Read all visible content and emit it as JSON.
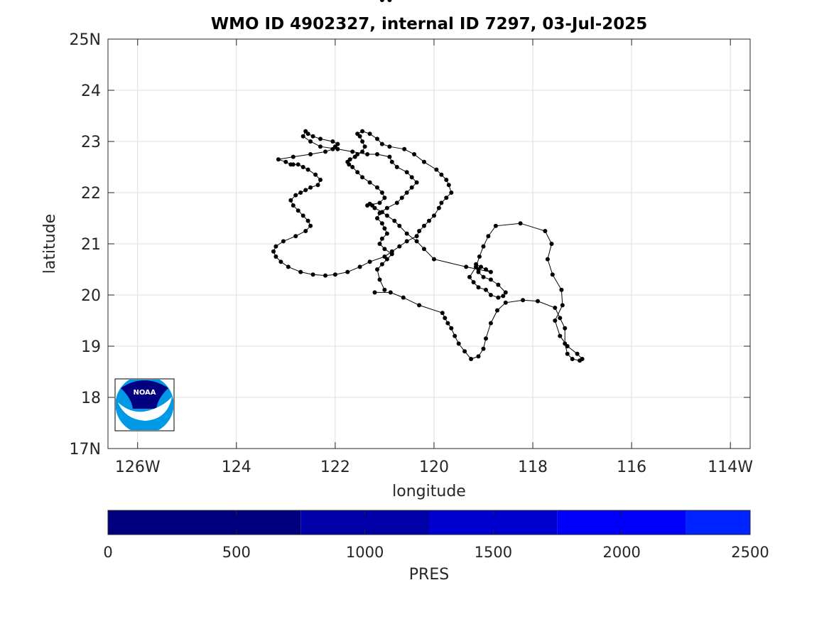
{
  "chart_data": {
    "type": "line",
    "title": "WMO ID 4902327, internal ID 7297, 03-Jul-2025",
    "xlabel": "longitude",
    "ylabel": "latitude",
    "xlim": [
      -126.6,
      -113.6
    ],
    "ylim": [
      17,
      25
    ],
    "xticks": [
      {
        "v": -126,
        "label": "126W"
      },
      {
        "v": -124,
        "label": "124"
      },
      {
        "v": -122,
        "label": "122"
      },
      {
        "v": -120,
        "label": "120"
      },
      {
        "v": -118,
        "label": "118"
      },
      {
        "v": -116,
        "label": "116"
      },
      {
        "v": -114,
        "label": "114W"
      }
    ],
    "yticks": [
      {
        "v": 17,
        "label": "17N"
      },
      {
        "v": 18,
        "label": "18"
      },
      {
        "v": 19,
        "label": "19"
      },
      {
        "v": 20,
        "label": "20"
      },
      {
        "v": 21,
        "label": "21"
      },
      {
        "v": 22,
        "label": "22"
      },
      {
        "v": 23,
        "label": "23"
      },
      {
        "v": 24,
        "label": "24"
      },
      {
        "v": 25,
        "label": "25N"
      }
    ],
    "grid": true,
    "series": [
      {
        "marker_color": "#000000",
        "line_color": "#000000",
        "lon": [
          -121.2,
          -120.88,
          -120.62,
          -120.3,
          -119.83,
          -119.78,
          -119.72,
          -119.65,
          -119.58,
          -119.5,
          -119.38,
          -119.25,
          -119.1,
          -119.0,
          -118.95,
          -118.85,
          -118.72,
          -118.55,
          -118.2,
          -117.9,
          -117.55,
          -117.45,
          -117.35,
          -117.35,
          -117.3,
          -117.2,
          -117.05,
          -117.0,
          -117.1,
          -117.3,
          -117.45,
          -117.55,
          -117.4,
          -117.42,
          -117.6,
          -117.7,
          -117.62,
          -117.75,
          -118.25,
          -118.75,
          -118.9,
          -119.0,
          -119.08,
          -119.15,
          -119.28,
          -119.2,
          -119.1,
          -118.95,
          -118.85,
          -118.7,
          -118.6,
          -118.55,
          -118.7,
          -118.85,
          -119.0,
          -119.1,
          -119.15,
          -119.15,
          -119.05,
          -118.95,
          -118.85,
          -119.1,
          -119.35,
          -120.0,
          -120.2,
          -120.35,
          -120.55,
          -120.7,
          -120.8,
          -120.95,
          -121.05,
          -121.2,
          -121.25,
          -121.3,
          -121.35,
          -121.1,
          -121.0,
          -121.05,
          -121.15,
          -121.3,
          -121.45,
          -121.55,
          -121.65,
          -121.72,
          -121.75,
          -121.7,
          -121.6,
          -121.55,
          -121.45,
          -121.4,
          -121.45,
          -121.5,
          -121.55,
          -121.45,
          -121.3,
          -121.15,
          -121.05,
          -120.9,
          -120.6,
          -120.4,
          -120.2,
          -119.95,
          -119.85,
          -119.75,
          -119.7,
          -119.65,
          -119.75,
          -119.85,
          -119.9,
          -120.0,
          -120.1,
          -120.2,
          -120.3,
          -120.35,
          -120.55,
          -120.7,
          -120.85,
          -121.0,
          -121.3,
          -121.5,
          -121.75,
          -122.0,
          -122.2,
          -122.45,
          -122.7,
          -122.95,
          -123.1,
          -123.2,
          -123.25,
          -123.2,
          -123.05,
          -122.8,
          -122.6,
          -122.5,
          -122.55,
          -122.65,
          -122.75,
          -122.85,
          -122.9,
          -122.8,
          -122.7,
          -122.6,
          -122.5,
          -122.35,
          -122.3,
          -122.4,
          -122.55,
          -122.65,
          -122.75,
          -122.85,
          -122.9,
          -123.0,
          -123.15,
          -122.85,
          -122.5,
          -122.2,
          -122.05,
          -122.0,
          -121.95,
          -122.05,
          -122.3,
          -122.45,
          -122.55,
          -122.6,
          -122.65,
          -122.5,
          -122.3,
          -121.95,
          -121.65,
          -121.35,
          -121.15,
          -120.9,
          -120.85,
          -120.75,
          -120.55,
          -120.45,
          -120.35,
          -120.45,
          -120.55,
          -120.65,
          -120.75,
          -120.95,
          -121.1,
          -121.15,
          -121.05,
          -121.0,
          -120.95,
          -121.05,
          -121.1,
          -121.0,
          -120.85,
          -120.95,
          -121.05,
          -121.15,
          -121.1,
          -121.0,
          -121.05,
          -120.9
        ],
        "lat": [
          20.05,
          20.05,
          19.95,
          19.8,
          19.65,
          19.55,
          19.45,
          19.35,
          19.2,
          19.05,
          18.9,
          18.75,
          18.8,
          18.95,
          19.15,
          19.45,
          19.7,
          19.85,
          19.9,
          19.88,
          19.75,
          19.55,
          19.35,
          19.05,
          18.85,
          18.75,
          18.72,
          18.75,
          18.85,
          19.0,
          19.2,
          19.5,
          19.8,
          20.1,
          20.4,
          20.7,
          21.0,
          21.25,
          21.4,
          21.35,
          21.15,
          20.95,
          20.75,
          20.55,
          20.35,
          20.25,
          20.15,
          20.1,
          20.0,
          19.95,
          19.98,
          20.05,
          20.2,
          20.3,
          20.35,
          20.45,
          20.55,
          20.6,
          20.55,
          20.5,
          20.45,
          20.5,
          20.55,
          20.7,
          20.9,
          21.05,
          21.2,
          21.35,
          21.45,
          21.55,
          21.62,
          21.7,
          21.75,
          21.78,
          21.75,
          21.8,
          21.9,
          22.0,
          22.1,
          22.2,
          22.3,
          22.4,
          22.5,
          22.55,
          22.6,
          22.65,
          22.7,
          22.75,
          22.8,
          22.9,
          23.0,
          23.1,
          23.15,
          23.2,
          23.15,
          23.05,
          22.95,
          22.9,
          22.85,
          22.75,
          22.6,
          22.45,
          22.35,
          22.25,
          22.15,
          22.0,
          21.9,
          21.8,
          21.7,
          21.55,
          21.45,
          21.35,
          21.25,
          21.15,
          21.05,
          20.95,
          20.85,
          20.75,
          20.65,
          20.55,
          20.45,
          20.4,
          20.38,
          20.4,
          20.45,
          20.55,
          20.65,
          20.75,
          20.85,
          20.95,
          21.05,
          21.15,
          21.25,
          21.35,
          21.45,
          21.55,
          21.65,
          21.75,
          21.85,
          21.95,
          22.0,
          22.05,
          22.1,
          22.15,
          22.25,
          22.35,
          22.45,
          22.5,
          22.55,
          22.55,
          22.55,
          22.6,
          22.65,
          22.7,
          22.75,
          22.8,
          22.85,
          22.9,
          22.95,
          23.0,
          23.05,
          23.1,
          23.15,
          23.2,
          23.1,
          23.0,
          22.9,
          22.85,
          22.8,
          22.75,
          22.75,
          22.7,
          22.6,
          22.5,
          22.4,
          22.3,
          22.2,
          22.1,
          22.0,
          21.9,
          21.8,
          21.7,
          21.6,
          21.5,
          21.4,
          21.3,
          21.2,
          21.1,
          21.0,
          20.9,
          20.8,
          20.7,
          20.6,
          20.5,
          20.3,
          20.1
        ]
      }
    ],
    "colorbar": {
      "label": "PRES",
      "range": [
        0,
        2500
      ],
      "ticks": [
        {
          "v": 0,
          "label": "0"
        },
        {
          "v": 500,
          "label": "500"
        },
        {
          "v": 1000,
          "label": "1000"
        },
        {
          "v": 1500,
          "label": "1500"
        },
        {
          "v": 2000,
          "label": "2000"
        },
        {
          "v": 2500,
          "label": "2500"
        }
      ],
      "bands": [
        {
          "from": 0,
          "to": 750,
          "color": "#00007f"
        },
        {
          "from": 750,
          "to": 1250,
          "color": "#0000a8"
        },
        {
          "from": 1250,
          "to": 1750,
          "color": "#0000d1"
        },
        {
          "from": 1750,
          "to": 2250,
          "color": "#0000fa"
        },
        {
          "from": 2250,
          "to": 2500,
          "color": "#0024ff"
        }
      ]
    },
    "logo": {
      "text": "NOAA",
      "icon": "noaa-logo-icon",
      "position": "bottom-left",
      "colors": {
        "top": "#000080",
        "bottom": "#0099e6",
        "wave": "#ffffff"
      }
    }
  }
}
